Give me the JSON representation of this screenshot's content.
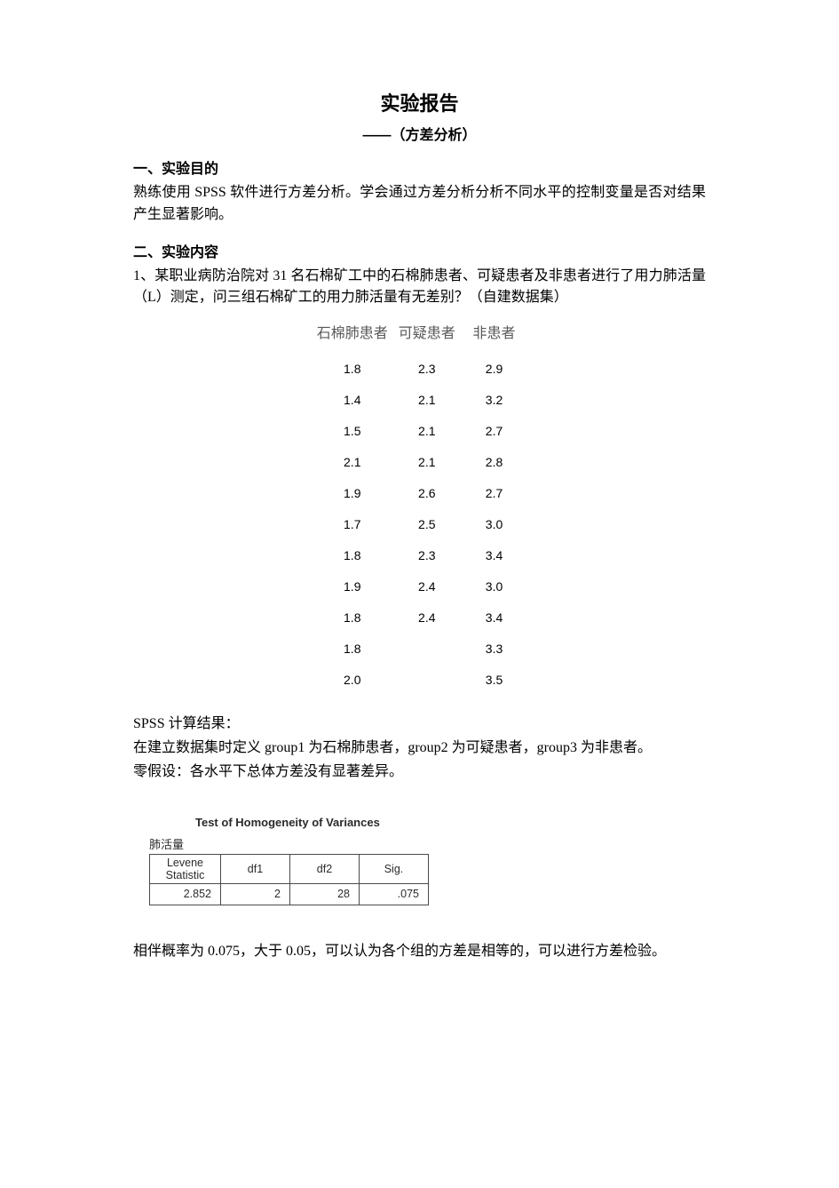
{
  "title": "实验报告",
  "subtitle": "——（方差分析）",
  "section1": {
    "heading": "一、实验目的",
    "text": "熟练使用 SPSS 软件进行方差分析。学会通过方差分析分析不同水平的控制变量是否对结果产生显著影响。"
  },
  "section2": {
    "heading": "二、实验内容",
    "text": "1、某职业病防治院对 31 名石棉矿工中的石棉肺患者、可疑患者及非患者进行了用力肺活量（L）测定，问三组石棉矿工的用力肺活量有无差别？（自建数据集）"
  },
  "data_table": {
    "columns": [
      "石棉肺患者",
      "可疑患者",
      "非患者"
    ],
    "rows": [
      [
        "1.8",
        "2.3",
        "2.9"
      ],
      [
        "1.4",
        "2.1",
        "3.2"
      ],
      [
        "1.5",
        "2.1",
        "2.7"
      ],
      [
        "2.1",
        "2.1",
        "2.8"
      ],
      [
        "1.9",
        "2.6",
        "2.7"
      ],
      [
        "1.7",
        "2.5",
        "3.0"
      ],
      [
        "1.8",
        "2.3",
        "3.4"
      ],
      [
        "1.9",
        "2.4",
        "3.0"
      ],
      [
        "1.8",
        "2.4",
        "3.4"
      ],
      [
        "1.8",
        "",
        "3.3"
      ],
      [
        "2.0",
        "",
        "3.5"
      ]
    ],
    "header_color": "#595959",
    "font_family_header": "SimSun",
    "font_family_body": "Arial",
    "font_size_header": 16,
    "font_size_body": 14
  },
  "spss": {
    "results_label": "SPSS 计算结果：",
    "group_def": "在建立数据集时定义 group1 为石棉肺患者，group2 为可疑患者，group3 为非患者。",
    "null_hyp": "零假设：各水平下总体方差没有显著差异。"
  },
  "levene": {
    "title": "Test of Homogeneity of Variances",
    "var_label": "肺活量",
    "headers": {
      "stat": "Levene\nStatistic",
      "df1": "df1",
      "df2": "df2",
      "sig": "Sig."
    },
    "row": {
      "stat": "2.852",
      "df1": "2",
      "df2": "28",
      "sig": ".075"
    },
    "border_color": "#4a4a4a",
    "font_family": "Arial",
    "font_size": 12.5
  },
  "conclusion": "相伴概率为 0.075，大于 0.05，可以认为各个组的方差是相等的，可以进行方差检验。"
}
